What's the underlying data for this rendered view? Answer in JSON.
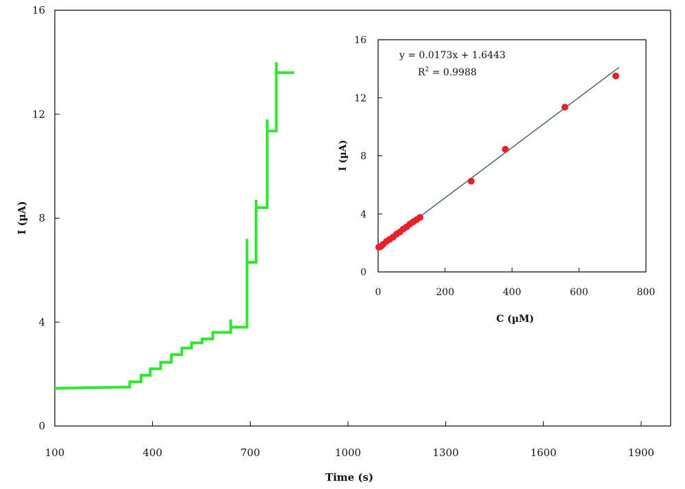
{
  "chart_data": [
    {
      "type": "line",
      "xlabel": "Time (s)",
      "ylabel": "I (µA)",
      "xlim": [
        100,
        1900
      ],
      "ylim": [
        0,
        16
      ],
      "xticks": [
        100,
        400,
        700,
        1000,
        1300,
        1600,
        1900
      ],
      "yticks": [
        0,
        4,
        8,
        12,
        16
      ],
      "grid": false,
      "series": [
        {
          "color": "#2ee82e",
          "x": [
            100,
            330,
            330,
            365,
            365,
            393,
            393,
            425,
            425,
            458,
            458,
            490,
            490,
            520,
            520,
            552,
            552,
            585,
            585,
            640,
            640,
            640,
            690,
            690,
            690,
            718,
            718,
            718,
            752,
            752,
            752,
            780,
            780,
            780,
            835
          ],
          "y": [
            1.45,
            1.5,
            1.7,
            1.7,
            1.95,
            1.95,
            2.2,
            2.2,
            2.45,
            2.45,
            2.75,
            2.75,
            3.0,
            3.0,
            3.2,
            3.2,
            3.35,
            3.35,
            3.6,
            3.6,
            4.1,
            3.8,
            3.8,
            7.2,
            6.3,
            6.3,
            8.7,
            8.4,
            8.4,
            11.8,
            11.35,
            11.35,
            14.0,
            13.6,
            13.6
          ]
        }
      ]
    },
    {
      "type": "scatter",
      "xlabel": "C (µM)",
      "ylabel": "I (µA)",
      "xlim": [
        0,
        800
      ],
      "ylim": [
        0,
        16
      ],
      "xticks": [
        0,
        200,
        400,
        600,
        800
      ],
      "yticks": [
        0,
        4,
        8,
        12,
        16
      ],
      "grid": false,
      "annotations": [
        "y = 0.0173x + 1.6443",
        "R",
        "2",
        " = 0.9988"
      ],
      "fit": {
        "slope": 0.0173,
        "intercept": 1.6443,
        "x_range": [
          0,
          720
        ],
        "color": "#3d5a6b"
      },
      "series": [
        {
          "color": "#e8202a",
          "x": [
            2,
            8,
            15,
            25,
            35,
            45,
            55,
            65,
            75,
            85,
            95,
            105,
            115,
            125,
            278,
            380,
            558,
            710
          ],
          "y": [
            1.7,
            1.75,
            1.9,
            2.1,
            2.25,
            2.4,
            2.6,
            2.75,
            2.95,
            3.1,
            3.3,
            3.45,
            3.6,
            3.75,
            6.25,
            8.45,
            11.35,
            13.5
          ]
        }
      ]
    }
  ]
}
